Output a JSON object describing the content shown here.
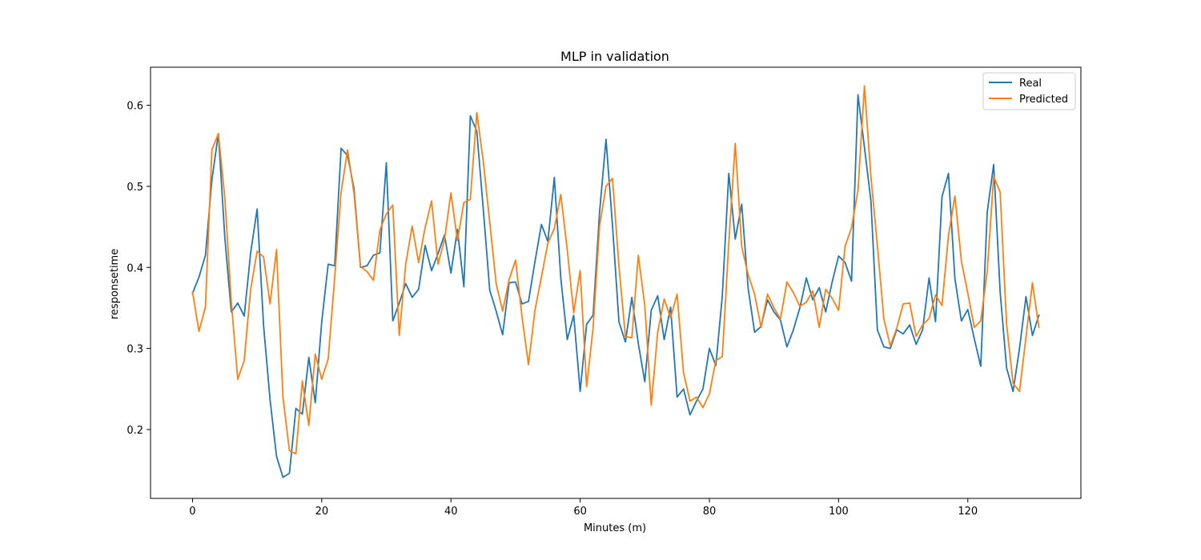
{
  "chart_data": {
    "type": "line",
    "title": "MLP in validation",
    "xlabel": "Minutes (m)",
    "ylabel": "responsetime",
    "xlim": [
      -6.5,
      137.5
    ],
    "ylim": [
      0.115,
      0.647
    ],
    "x_ticks": [
      0,
      20,
      40,
      60,
      80,
      100,
      120
    ],
    "y_ticks": [
      0.2,
      0.3,
      0.4,
      0.5,
      0.6
    ],
    "x_tick_labels": [
      "0",
      "20",
      "40",
      "60",
      "80",
      "100",
      "120"
    ],
    "y_tick_labels": [
      "0.2",
      "0.3",
      "0.4",
      "0.5",
      "0.6"
    ],
    "legend_position": "upper right",
    "grid": false,
    "series": [
      {
        "name": "Real",
        "color": "#1f77b4",
        "values": [
          0.368,
          0.388,
          0.415,
          0.508,
          0.565,
          0.437,
          0.345,
          0.356,
          0.34,
          0.418,
          0.472,
          0.328,
          0.237,
          0.167,
          0.141,
          0.146,
          0.226,
          0.219,
          0.289,
          0.233,
          0.333,
          0.404,
          0.402,
          0.547,
          0.538,
          0.497,
          0.4,
          0.402,
          0.415,
          0.418,
          0.529,
          0.334,
          0.356,
          0.38,
          0.363,
          0.373,
          0.427,
          0.396,
          0.417,
          0.44,
          0.393,
          0.447,
          0.376,
          0.587,
          0.568,
          0.472,
          0.372,
          0.346,
          0.317,
          0.381,
          0.382,
          0.355,
          0.358,
          0.407,
          0.453,
          0.432,
          0.511,
          0.387,
          0.311,
          0.341,
          0.247,
          0.33,
          0.341,
          0.468,
          0.558,
          0.452,
          0.333,
          0.308,
          0.363,
          0.306,
          0.259,
          0.347,
          0.365,
          0.311,
          0.351,
          0.24,
          0.25,
          0.218,
          0.235,
          0.25,
          0.3,
          0.279,
          0.365,
          0.516,
          0.435,
          0.478,
          0.374,
          0.32,
          0.327,
          0.36,
          0.345,
          0.335,
          0.302,
          0.323,
          0.35,
          0.387,
          0.36,
          0.375,
          0.345,
          0.382,
          0.414,
          0.406,
          0.383,
          0.613,
          0.548,
          0.482,
          0.323,
          0.302,
          0.3,
          0.323,
          0.318,
          0.329,
          0.305,
          0.323,
          0.387,
          0.333,
          0.487,
          0.516,
          0.386,
          0.334,
          0.348,
          0.312,
          0.278,
          0.468,
          0.527,
          0.37,
          0.276,
          0.247,
          0.3,
          0.364,
          0.316,
          0.341
        ]
      },
      {
        "name": "Predicted",
        "color": "#ff7f0e",
        "values": [
          0.37,
          0.321,
          0.351,
          0.545,
          0.565,
          0.486,
          0.358,
          0.262,
          0.285,
          0.373,
          0.42,
          0.413,
          0.355,
          0.422,
          0.24,
          0.174,
          0.17,
          0.26,
          0.205,
          0.293,
          0.262,
          0.287,
          0.387,
          0.493,
          0.545,
          0.491,
          0.401,
          0.395,
          0.384,
          0.446,
          0.466,
          0.477,
          0.316,
          0.404,
          0.451,
          0.406,
          0.449,
          0.482,
          0.404,
          0.434,
          0.492,
          0.433,
          0.48,
          0.484,
          0.591,
          0.531,
          0.456,
          0.38,
          0.346,
          0.385,
          0.409,
          0.339,
          0.28,
          0.347,
          0.388,
          0.43,
          0.448,
          0.49,
          0.422,
          0.344,
          0.396,
          0.253,
          0.325,
          0.451,
          0.5,
          0.51,
          0.402,
          0.315,
          0.313,
          0.415,
          0.353,
          0.23,
          0.32,
          0.361,
          0.338,
          0.367,
          0.27,
          0.235,
          0.24,
          0.227,
          0.244,
          0.285,
          0.29,
          0.43,
          0.553,
          0.426,
          0.391,
          0.367,
          0.326,
          0.367,
          0.35,
          0.336,
          0.382,
          0.369,
          0.352,
          0.357,
          0.371,
          0.326,
          0.373,
          0.362,
          0.347,
          0.426,
          0.449,
          0.495,
          0.624,
          0.512,
          0.427,
          0.337,
          0.303,
          0.325,
          0.355,
          0.356,
          0.315,
          0.329,
          0.337,
          0.366,
          0.353,
          0.439,
          0.488,
          0.408,
          0.368,
          0.326,
          0.334,
          0.395,
          0.512,
          0.493,
          0.33,
          0.257,
          0.247,
          0.314,
          0.381,
          0.326
        ]
      }
    ]
  }
}
